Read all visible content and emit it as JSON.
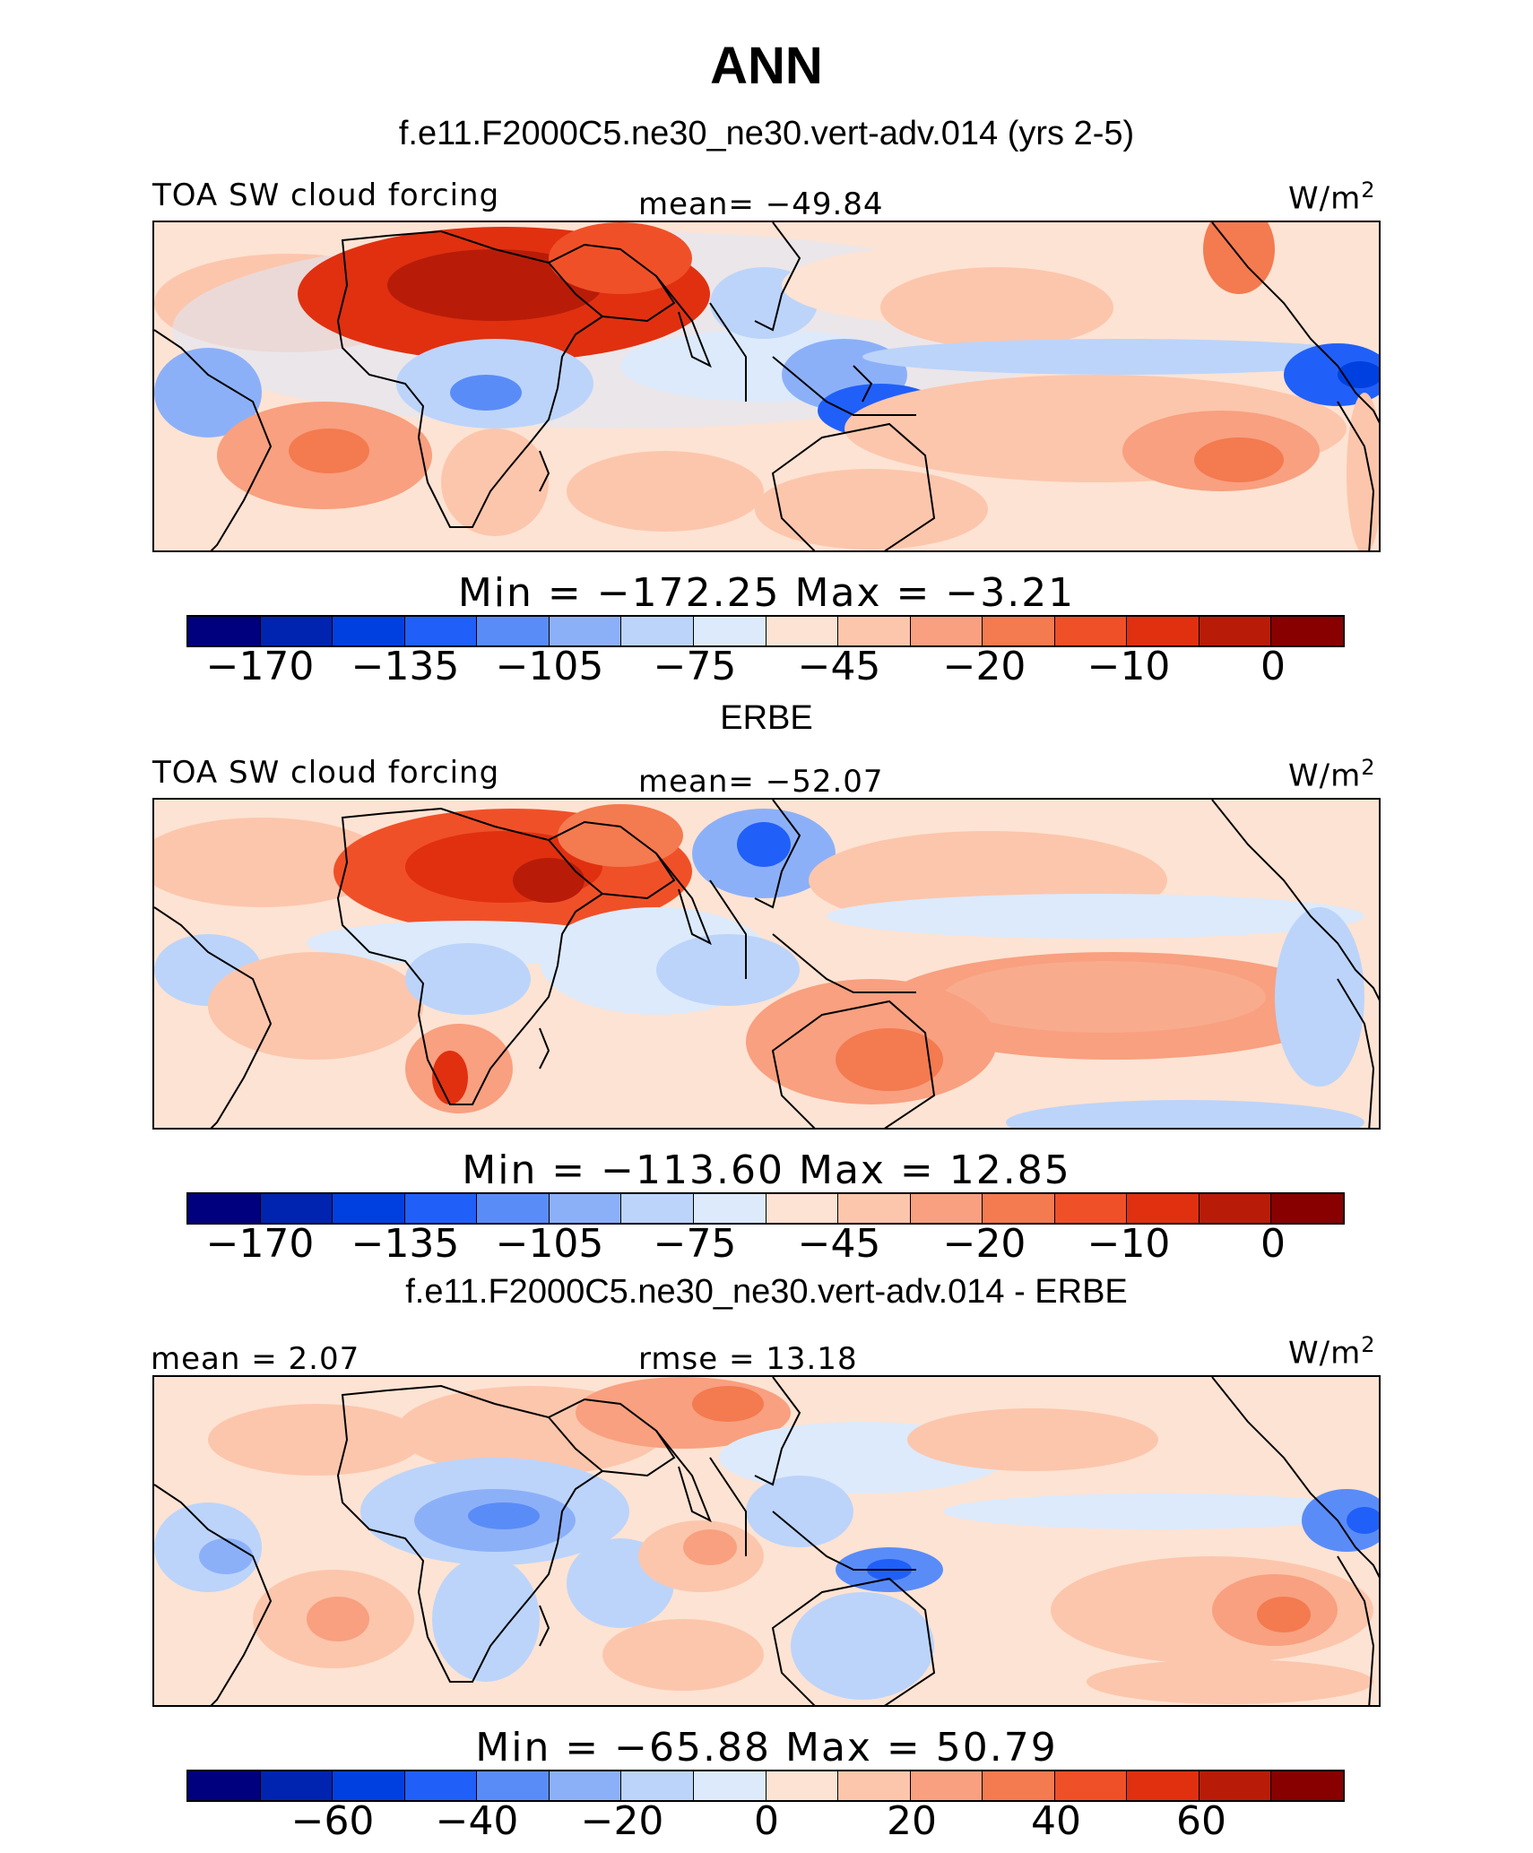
{
  "title": "ANN",
  "colorbar_colors": [
    "#00007f",
    "#0024b0",
    "#0040e0",
    "#2060f8",
    "#5a8cf8",
    "#8cb0f8",
    "#bcd4fa",
    "#dceafc",
    "#fde3d3",
    "#fcc6ac",
    "#f8a080",
    "#f47a50",
    "#f05028",
    "#e03010",
    "#b81c08",
    "#880000"
  ],
  "panels": [
    {
      "header": "f.e11.F2000C5.ne30_ne30.vert-adv.014 (yrs 2-5)",
      "left_label": "TOA SW cloud forcing",
      "center_label": "mean=  −49.84",
      "units": "W/m",
      "units_sup": "2",
      "minmax": "Min  =  −172.25  Max  =   −3.21",
      "ticks": [
        "−170",
        "−135",
        "−105",
        "−75",
        "−45",
        "−20",
        "−10",
        "0"
      ]
    },
    {
      "header": "ERBE",
      "left_label": "TOA SW cloud forcing",
      "center_label": "mean=  −52.07",
      "units": "W/m",
      "units_sup": "2",
      "minmax": "Min  =  −113.60  Max  =   12.85",
      "ticks": [
        "−170",
        "−135",
        "−105",
        "−75",
        "−45",
        "−20",
        "−10",
        "0"
      ]
    },
    {
      "header": "f.e11.F2000C5.ne30_ne30.vert-adv.014 - ERBE",
      "left_label": "mean  =    2.07",
      "center_label": "rmse  =   13.18",
      "units": "W/m",
      "units_sup": "2",
      "minmax": "Min  =  −65.88  Max  =    50.79",
      "ticks": [
        "−60",
        "−40",
        "−20",
        "0",
        "20",
        "40",
        "60"
      ]
    }
  ]
}
